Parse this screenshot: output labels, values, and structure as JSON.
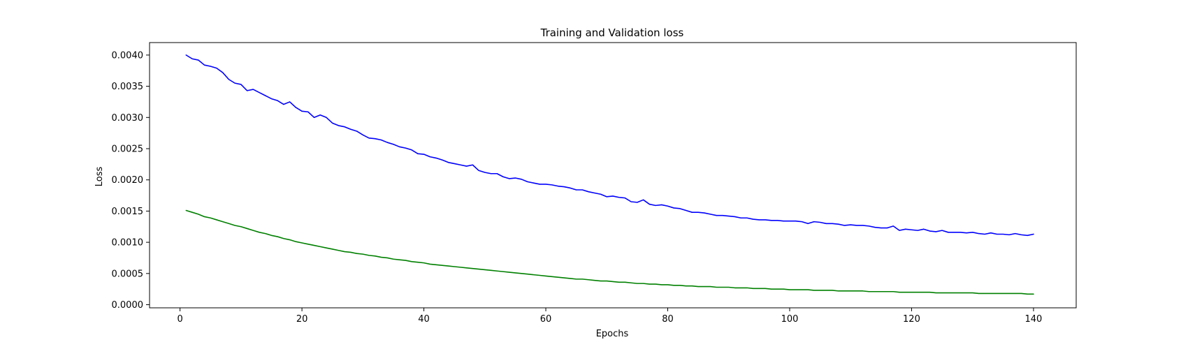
{
  "chart_data": {
    "type": "line",
    "title": "Training and Validation loss",
    "xlabel": "Epochs",
    "ylabel": "Loss",
    "xlim": [
      -5,
      147
    ],
    "ylim": [
      -5e-05,
      0.0042
    ],
    "grid": false,
    "x_ticks": [
      0,
      20,
      40,
      60,
      80,
      100,
      120,
      140
    ],
    "y_ticks": [
      0.0,
      0.0005,
      0.001,
      0.0015,
      0.002,
      0.0025,
      0.003,
      0.0035,
      0.004
    ],
    "x_tick_labels": [
      "0",
      "20",
      "40",
      "60",
      "80",
      "100",
      "120",
      "140"
    ],
    "y_tick_labels": [
      "0.0000",
      "0.0005",
      "0.0010",
      "0.0015",
      "0.0020",
      "0.0025",
      "0.0030",
      "0.0035",
      "0.0040"
    ],
    "series": [
      {
        "color": "#0000ff",
        "x": [
          1,
          2,
          3,
          4,
          5,
          6,
          7,
          8,
          9,
          10,
          11,
          12,
          13,
          14,
          15,
          16,
          17,
          18,
          19,
          20,
          21,
          22,
          23,
          24,
          25,
          26,
          27,
          28,
          29,
          30,
          31,
          32,
          33,
          34,
          35,
          36,
          37,
          38,
          39,
          40,
          41,
          42,
          43,
          44,
          45,
          46,
          47,
          48,
          49,
          50,
          51,
          52,
          53,
          54,
          55,
          56,
          57,
          58,
          59,
          60,
          61,
          62,
          63,
          64,
          65,
          66,
          67,
          68,
          69,
          70,
          71,
          72,
          73,
          74,
          75,
          76,
          77,
          78,
          79,
          80,
          81,
          82,
          83,
          84,
          85,
          86,
          87,
          88,
          89,
          90,
          91,
          92,
          93,
          94,
          95,
          96,
          97,
          98,
          99,
          100,
          101,
          102,
          103,
          104,
          105,
          106,
          107,
          108,
          109,
          110,
          111,
          112,
          113,
          114,
          115,
          116,
          117,
          118,
          119,
          120,
          121,
          122,
          123,
          124,
          125,
          126,
          127,
          128,
          129,
          130,
          131,
          132,
          133,
          134,
          135,
          136,
          137,
          138,
          139,
          140
        ],
        "values": [
          0.004,
          0.00394,
          0.00392,
          0.00384,
          0.00382,
          0.00379,
          0.00372,
          0.00361,
          0.00355,
          0.00353,
          0.00343,
          0.00345,
          0.0034,
          0.00335,
          0.0033,
          0.00327,
          0.00321,
          0.00325,
          0.00316,
          0.0031,
          0.00309,
          0.003,
          0.00304,
          0.003,
          0.00291,
          0.00287,
          0.00285,
          0.00281,
          0.00278,
          0.00272,
          0.00267,
          0.00266,
          0.00264,
          0.0026,
          0.00257,
          0.00253,
          0.00251,
          0.00248,
          0.00242,
          0.00241,
          0.00237,
          0.00235,
          0.00232,
          0.00228,
          0.00226,
          0.00224,
          0.00222,
          0.00224,
          0.00215,
          0.00212,
          0.0021,
          0.0021,
          0.00205,
          0.00202,
          0.00203,
          0.00201,
          0.00197,
          0.00195,
          0.00193,
          0.00193,
          0.00192,
          0.0019,
          0.00189,
          0.00187,
          0.00184,
          0.00184,
          0.00181,
          0.00179,
          0.00177,
          0.00173,
          0.00174,
          0.00172,
          0.00171,
          0.00165,
          0.00164,
          0.00168,
          0.00161,
          0.00159,
          0.0016,
          0.00158,
          0.00155,
          0.00154,
          0.00151,
          0.00148,
          0.00148,
          0.00147,
          0.00145,
          0.00143,
          0.00143,
          0.00142,
          0.00141,
          0.00139,
          0.00139,
          0.00137,
          0.00136,
          0.00136,
          0.00135,
          0.00135,
          0.00134,
          0.00134,
          0.00134,
          0.00133,
          0.0013,
          0.00133,
          0.00132,
          0.0013,
          0.0013,
          0.00129,
          0.00127,
          0.00128,
          0.00127,
          0.00127,
          0.00126,
          0.00124,
          0.00123,
          0.00123,
          0.00126,
          0.00119,
          0.00121,
          0.0012,
          0.00119,
          0.00121,
          0.00118,
          0.00117,
          0.00119,
          0.00116,
          0.00116,
          0.00116,
          0.00115,
          0.00116,
          0.00114,
          0.00113,
          0.00115,
          0.00113,
          0.00113,
          0.00112,
          0.00114,
          0.00112,
          0.00111,
          0.00113
        ]
      },
      {
        "color": "#008000",
        "x": [
          1,
          2,
          3,
          4,
          5,
          6,
          7,
          8,
          9,
          10,
          11,
          12,
          13,
          14,
          15,
          16,
          17,
          18,
          19,
          20,
          21,
          22,
          23,
          24,
          25,
          26,
          27,
          28,
          29,
          30,
          31,
          32,
          33,
          34,
          35,
          36,
          37,
          38,
          39,
          40,
          41,
          42,
          43,
          44,
          45,
          46,
          47,
          48,
          49,
          50,
          51,
          52,
          53,
          54,
          55,
          56,
          57,
          58,
          59,
          60,
          61,
          62,
          63,
          64,
          65,
          66,
          67,
          68,
          69,
          70,
          71,
          72,
          73,
          74,
          75,
          76,
          77,
          78,
          79,
          80,
          81,
          82,
          83,
          84,
          85,
          86,
          87,
          88,
          89,
          90,
          91,
          92,
          93,
          94,
          95,
          96,
          97,
          98,
          99,
          100,
          101,
          102,
          103,
          104,
          105,
          106,
          107,
          108,
          109,
          110,
          111,
          112,
          113,
          114,
          115,
          116,
          117,
          118,
          119,
          120,
          121,
          122,
          123,
          124,
          125,
          126,
          127,
          128,
          129,
          130,
          131,
          132,
          133,
          134,
          135,
          136,
          137,
          138,
          139,
          140
        ],
        "values": [
          0.00151,
          0.00148,
          0.00145,
          0.00141,
          0.00139,
          0.00136,
          0.00133,
          0.0013,
          0.00127,
          0.00125,
          0.00122,
          0.00119,
          0.00116,
          0.00114,
          0.00111,
          0.00109,
          0.00106,
          0.00104,
          0.00101,
          0.00099,
          0.00097,
          0.00095,
          0.00093,
          0.00091,
          0.00089,
          0.00087,
          0.00085,
          0.00084,
          0.00082,
          0.00081,
          0.00079,
          0.00078,
          0.00076,
          0.00075,
          0.00073,
          0.00072,
          0.00071,
          0.00069,
          0.00068,
          0.00067,
          0.00065,
          0.00064,
          0.00063,
          0.00062,
          0.00061,
          0.0006,
          0.00059,
          0.00058,
          0.00057,
          0.00056,
          0.00055,
          0.00054,
          0.00053,
          0.00052,
          0.00051,
          0.0005,
          0.00049,
          0.00048,
          0.00047,
          0.00046,
          0.00045,
          0.00044,
          0.00043,
          0.00042,
          0.00041,
          0.00041,
          0.0004,
          0.00039,
          0.00038,
          0.00038,
          0.00037,
          0.00036,
          0.00036,
          0.00035,
          0.00034,
          0.00034,
          0.00033,
          0.00033,
          0.00032,
          0.00032,
          0.00031,
          0.00031,
          0.0003,
          0.0003,
          0.00029,
          0.00029,
          0.00029,
          0.00028,
          0.00028,
          0.00028,
          0.00027,
          0.00027,
          0.00027,
          0.00026,
          0.00026,
          0.00026,
          0.00025,
          0.00025,
          0.00025,
          0.00024,
          0.00024,
          0.00024,
          0.00024,
          0.00023,
          0.00023,
          0.00023,
          0.00023,
          0.00022,
          0.00022,
          0.00022,
          0.00022,
          0.00022,
          0.00021,
          0.00021,
          0.00021,
          0.00021,
          0.00021,
          0.0002,
          0.0002,
          0.0002,
          0.0002,
          0.0002,
          0.0002,
          0.00019,
          0.00019,
          0.00019,
          0.00019,
          0.00019,
          0.00019,
          0.00019,
          0.00018,
          0.00018,
          0.00018,
          0.00018,
          0.00018,
          0.00018,
          0.00018,
          0.00018,
          0.00017,
          0.00017
        ]
      }
    ]
  }
}
